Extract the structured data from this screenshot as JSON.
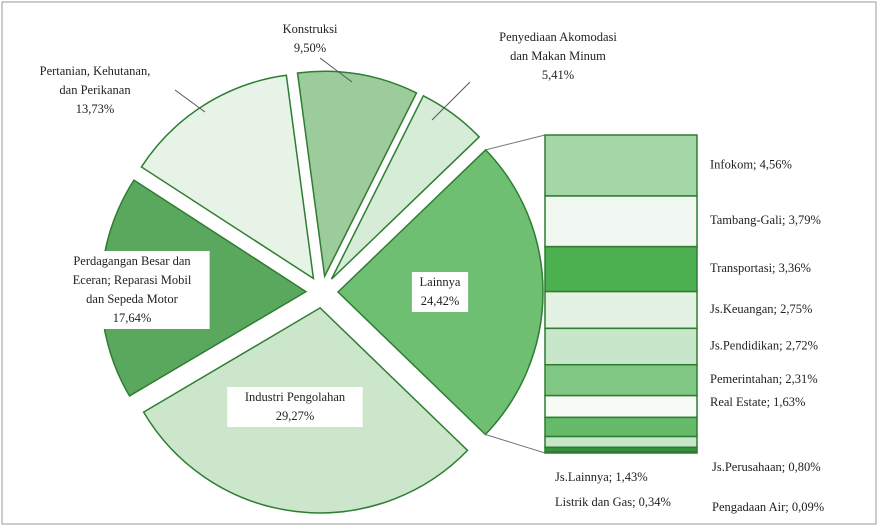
{
  "chart_data": {
    "type": "pie-of-bar",
    "slices": [
      {
        "name": [
          "Konstruksi"
        ],
        "value": 9.5,
        "value_label": "9,50%",
        "color": "#9ccc9c"
      },
      {
        "name": [
          "Penyediaan Akomodasi",
          "dan Makan Minum"
        ],
        "value": 5.41,
        "value_label": "5,41%",
        "color": "#d6ecd6"
      },
      {
        "name": [
          "Lainnya"
        ],
        "value": 24.42,
        "value_label": "24,42%",
        "color": "#6fbf73"
      },
      {
        "name": [
          "Industri Pengolahan"
        ],
        "value": 29.27,
        "value_label": "29,27%",
        "color": "#cbe6cb"
      },
      {
        "name": [
          "Perdagangan Besar dan",
          "Eceran; Reparasi Mobil",
          "dan Sepeda Motor"
        ],
        "value": 17.64,
        "value_label": "17,64%",
        "color": "#5aa85e"
      },
      {
        "name": [
          "Pertanian, Kehutanan,",
          "dan Perikanan"
        ],
        "value": 13.73,
        "value_label": "13,73%",
        "color": "#e6f3e6"
      }
    ],
    "bar": {
      "labels": [
        "Infokom; 4,56%",
        "Tambang-Gali; 3,79%",
        "Transportasi; 3,36%",
        "Js.Keuangan; 2,75%",
        "Js.Pendidikan; 2,72%",
        "Pemerintahan; 2,31%",
        "Real Estate; 1,63%",
        "Js.Lainnya; 1,43%",
        "Js.Perusahaan; 0,80%",
        "Listrik dan Gas; 0,34%",
        "Pengadaan Air; 0,09%"
      ],
      "values": [
        4.56,
        3.79,
        3.36,
        2.75,
        2.72,
        2.31,
        1.63,
        1.43,
        0.8,
        0.34,
        0.09
      ],
      "colors": [
        "#a5d6a7",
        "#f1f8f1",
        "#4caf50",
        "#e3f2e3",
        "#c8e6c9",
        "#81c784",
        "#f6fbf6",
        "#66bb6a",
        "#c8e6c9",
        "#388e3c",
        "#e8f5e9"
      ]
    }
  }
}
